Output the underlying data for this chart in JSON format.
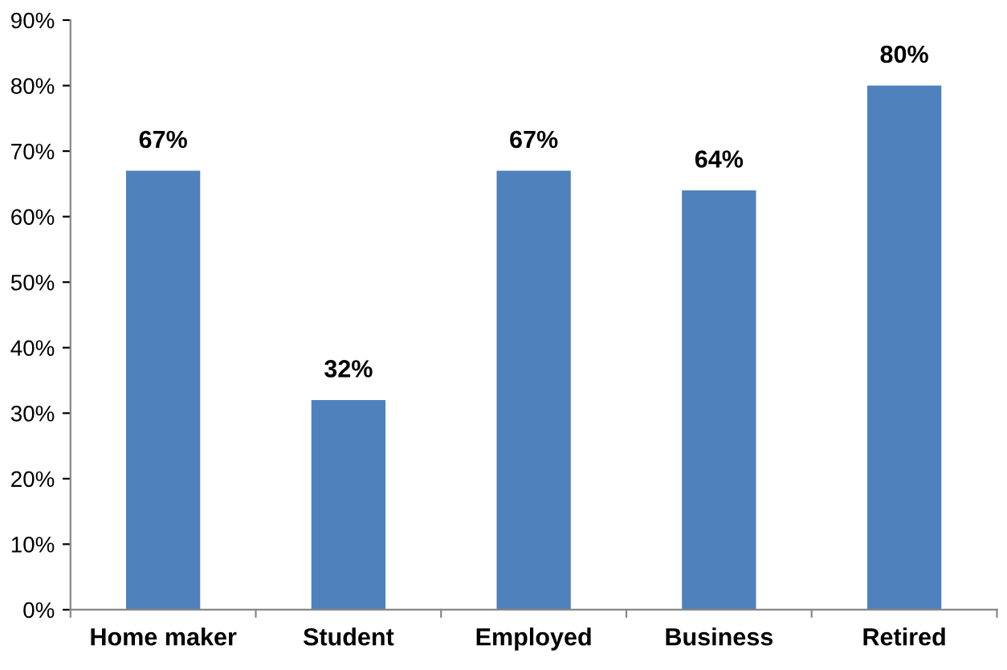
{
  "chart_data": {
    "type": "bar",
    "categories": [
      "Home maker",
      "Student",
      "Employed",
      "Business",
      "Retired"
    ],
    "values": [
      67,
      32,
      67,
      64,
      80
    ],
    "value_labels": [
      "67%",
      "32%",
      "67%",
      "64%",
      "80%"
    ],
    "color": "#4f81bd",
    "ylim": [
      0,
      90
    ],
    "yticks": [
      {
        "value": 0,
        "label": "0%"
      },
      {
        "value": 10,
        "label": "10%"
      },
      {
        "value": 20,
        "label": "20%"
      },
      {
        "value": 30,
        "label": "30%"
      },
      {
        "value": 40,
        "label": "40%"
      },
      {
        "value": 50,
        "label": "50%"
      },
      {
        "value": 60,
        "label": "60%"
      },
      {
        "value": 70,
        "label": "70%"
      },
      {
        "value": 80,
        "label": "80%"
      },
      {
        "value": 90,
        "label": "90%"
      }
    ],
    "grid": false,
    "legend": false
  }
}
